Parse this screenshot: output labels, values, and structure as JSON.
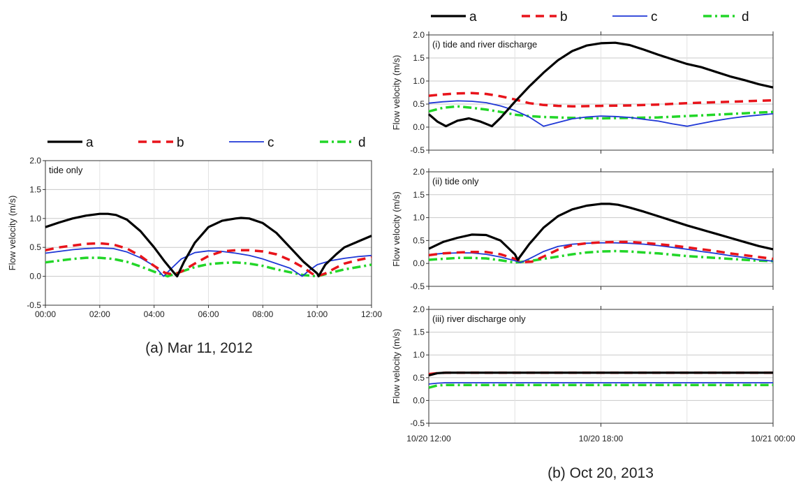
{
  "series_styles": {
    "a": {
      "color": "#000000",
      "width": 3.2,
      "dash": ""
    },
    "b": {
      "color": "#e8141b",
      "width": 3.5,
      "dash": "12 8"
    },
    "c": {
      "color": "#1f37d6",
      "width": 1.8,
      "dash": ""
    },
    "d": {
      "color": "#22d628",
      "width": 3.5,
      "dash": "12 5 3 5"
    }
  },
  "legend_left": [
    "a",
    "b",
    "c",
    "d"
  ],
  "legend_right": [
    "a",
    "b",
    "c",
    "d"
  ],
  "captions": {
    "left": "(a) Mar 11, 2012",
    "right": "(b) Oct 20, 2013"
  },
  "chart_data": [
    {
      "type": "line",
      "panel_label": "tide only",
      "ylabel": "Flow velocity (m/s)",
      "ylim": [
        -0.5,
        2.0
      ],
      "yticks": [
        "2.0",
        "1.5",
        "1.0",
        "0.5",
        "0.0",
        "-0.5"
      ],
      "xlim": [
        0,
        12
      ],
      "xticks": [
        "00:00",
        "02:00",
        "04:00",
        "06:00",
        "08:00",
        "10:00",
        "12:00"
      ],
      "grid": true,
      "legend": "top",
      "series": [
        {
          "name": "a",
          "x": [
            0,
            0.5,
            1,
            1.5,
            2,
            2.3,
            2.6,
            3,
            3.5,
            4,
            4.4,
            4.75,
            4.85,
            5.1,
            5.5,
            6,
            6.5,
            7,
            7.2,
            7.5,
            8,
            8.5,
            9,
            9.5,
            10,
            10.05,
            10.3,
            10.7,
            11,
            11.5,
            12
          ],
          "y": [
            0.85,
            0.93,
            1.0,
            1.05,
            1.08,
            1.08,
            1.06,
            0.98,
            0.78,
            0.5,
            0.25,
            0.05,
            0.0,
            0.25,
            0.58,
            0.85,
            0.96,
            1.0,
            1.01,
            1.0,
            0.92,
            0.75,
            0.5,
            0.25,
            0.05,
            0.0,
            0.2,
            0.38,
            0.5,
            0.6,
            0.7
          ]
        },
        {
          "name": "b",
          "x": [
            0,
            0.5,
            1,
            1.5,
            2,
            2.5,
            3,
            3.5,
            4,
            4.4,
            4.7,
            5,
            5.5,
            6,
            6.5,
            7,
            7.5,
            8,
            8.5,
            9,
            9.5,
            9.8,
            10,
            10.3,
            10.7,
            11,
            11.5,
            12
          ],
          "y": [
            0.45,
            0.5,
            0.53,
            0.56,
            0.57,
            0.55,
            0.48,
            0.35,
            0.18,
            0.06,
            0.03,
            0.08,
            0.22,
            0.35,
            0.43,
            0.45,
            0.45,
            0.43,
            0.38,
            0.28,
            0.15,
            0.05,
            0.0,
            0.05,
            0.15,
            0.22,
            0.28,
            0.33
          ]
        },
        {
          "name": "c",
          "x": [
            0,
            0.5,
            1,
            1.5,
            2,
            2.5,
            3,
            3.5,
            4,
            4.35,
            4.6,
            5,
            5.5,
            6,
            6.5,
            7,
            7.5,
            8,
            8.5,
            9,
            9.45,
            9.7,
            10,
            10.5,
            11,
            11.5,
            12
          ],
          "y": [
            0.4,
            0.43,
            0.46,
            0.48,
            0.49,
            0.48,
            0.42,
            0.32,
            0.18,
            0.0,
            0.12,
            0.3,
            0.41,
            0.44,
            0.43,
            0.4,
            0.36,
            0.3,
            0.22,
            0.14,
            0.0,
            0.1,
            0.2,
            0.27,
            0.31,
            0.34,
            0.36
          ]
        },
        {
          "name": "d",
          "x": [
            0,
            0.5,
            1,
            1.5,
            2,
            2.5,
            3,
            3.5,
            4,
            4.5,
            5,
            5.5,
            6,
            6.5,
            7,
            7.5,
            8,
            8.5,
            9,
            9.5,
            10,
            10.5,
            11,
            11.5,
            12
          ],
          "y": [
            0.24,
            0.27,
            0.3,
            0.32,
            0.32,
            0.3,
            0.25,
            0.17,
            0.08,
            0.0,
            0.08,
            0.16,
            0.21,
            0.23,
            0.24,
            0.22,
            0.18,
            0.12,
            0.07,
            0.02,
            0.0,
            0.06,
            0.12,
            0.16,
            0.2
          ]
        }
      ]
    },
    {
      "type": "line",
      "panel_label": "(i) tide and river discharge",
      "ylabel": "Flow velocity (m/s)",
      "ylim": [
        -0.5,
        2.0
      ],
      "yticks": [
        "2.0",
        "1.5",
        "1.0",
        "0.5",
        "0.0",
        "-0.5"
      ],
      "xlim": [
        0,
        12
      ],
      "xticks": [],
      "grid": true,
      "series": [
        {
          "name": "a",
          "x": [
            0,
            0.3,
            0.6,
            1,
            1.4,
            1.8,
            2.2,
            2.5,
            3,
            3.5,
            4,
            4.5,
            5,
            5.5,
            6,
            6.5,
            7,
            7.5,
            8,
            8.5,
            9,
            9.5,
            10,
            10.5,
            11,
            11.5,
            12
          ],
          "y": [
            0.28,
            0.12,
            0.02,
            0.14,
            0.19,
            0.12,
            0.02,
            0.2,
            0.55,
            0.88,
            1.18,
            1.45,
            1.65,
            1.77,
            1.82,
            1.83,
            1.78,
            1.68,
            1.57,
            1.47,
            1.37,
            1.3,
            1.2,
            1.1,
            1.02,
            0.93,
            0.86
          ]
        },
        {
          "name": "b",
          "x": [
            0,
            0.5,
            1,
            1.5,
            2,
            2.5,
            3,
            3.5,
            4,
            4.5,
            5,
            6,
            7,
            8,
            9,
            10,
            11,
            12
          ],
          "y": [
            0.68,
            0.71,
            0.73,
            0.74,
            0.72,
            0.67,
            0.6,
            0.52,
            0.48,
            0.46,
            0.45,
            0.46,
            0.47,
            0.49,
            0.52,
            0.54,
            0.56,
            0.58
          ]
        },
        {
          "name": "c",
          "x": [
            0,
            0.5,
            1,
            1.5,
            2,
            2.5,
            3,
            3.5,
            4,
            4.5,
            5,
            5.5,
            6,
            6.5,
            7,
            7.5,
            8,
            8.5,
            9,
            9.5,
            10,
            10.5,
            11,
            11.5,
            12
          ],
          "y": [
            0.52,
            0.55,
            0.57,
            0.56,
            0.53,
            0.46,
            0.36,
            0.22,
            0.02,
            0.1,
            0.18,
            0.22,
            0.24,
            0.23,
            0.21,
            0.17,
            0.13,
            0.07,
            0.02,
            0.08,
            0.14,
            0.19,
            0.23,
            0.26,
            0.29
          ]
        },
        {
          "name": "d",
          "x": [
            0,
            0.5,
            1,
            1.5,
            2,
            2.5,
            3,
            3.5,
            4,
            5,
            6,
            7,
            8,
            9,
            10,
            11,
            12
          ],
          "y": [
            0.34,
            0.42,
            0.45,
            0.42,
            0.38,
            0.33,
            0.27,
            0.24,
            0.22,
            0.2,
            0.19,
            0.2,
            0.21,
            0.24,
            0.27,
            0.3,
            0.33
          ]
        }
      ]
    },
    {
      "type": "line",
      "panel_label": "(ii) tide only",
      "ylabel": "Flow velocity (m/s)",
      "ylim": [
        -0.5,
        2.0
      ],
      "yticks": [
        "2.0",
        "1.5",
        "1.0",
        "0.5",
        "0.0",
        "-0.5"
      ],
      "xlim": [
        0,
        12
      ],
      "xticks": [],
      "grid": true,
      "series": [
        {
          "name": "a",
          "x": [
            0,
            0.5,
            1,
            1.5,
            2,
            2.5,
            3,
            3.1,
            3.5,
            4,
            4.5,
            5,
            5.5,
            6,
            6.3,
            6.6,
            7,
            7.5,
            8,
            8.5,
            9,
            9.5,
            10,
            10.5,
            11,
            11.5,
            12
          ],
          "y": [
            0.32,
            0.47,
            0.56,
            0.63,
            0.62,
            0.5,
            0.2,
            0.08,
            0.42,
            0.78,
            1.03,
            1.18,
            1.26,
            1.3,
            1.3,
            1.28,
            1.22,
            1.13,
            1.03,
            0.93,
            0.83,
            0.74,
            0.65,
            0.56,
            0.47,
            0.38,
            0.31
          ]
        },
        {
          "name": "b",
          "x": [
            0,
            0.5,
            1,
            1.5,
            2,
            2.5,
            3,
            3.3,
            3.6,
            4,
            4.5,
            5,
            5.5,
            6,
            6.5,
            7,
            7.5,
            8,
            8.5,
            9,
            9.5,
            10,
            10.5,
            11,
            11.5,
            12
          ],
          "y": [
            0.18,
            0.22,
            0.24,
            0.25,
            0.25,
            0.2,
            0.1,
            0.03,
            0.04,
            0.15,
            0.3,
            0.4,
            0.44,
            0.46,
            0.47,
            0.47,
            0.45,
            0.42,
            0.39,
            0.35,
            0.31,
            0.27,
            0.22,
            0.18,
            0.14,
            0.1
          ]
        },
        {
          "name": "c",
          "x": [
            0,
            0.5,
            1,
            1.5,
            2,
            2.5,
            3,
            3.2,
            3.5,
            4,
            4.5,
            5,
            5.5,
            6,
            6.5,
            7,
            7.5,
            8,
            8.5,
            9,
            9.5,
            10,
            10.5,
            11,
            11.5,
            12
          ],
          "y": [
            0.19,
            0.22,
            0.23,
            0.23,
            0.2,
            0.14,
            0.06,
            0.02,
            0.1,
            0.26,
            0.37,
            0.42,
            0.44,
            0.45,
            0.45,
            0.44,
            0.42,
            0.39,
            0.35,
            0.31,
            0.26,
            0.22,
            0.17,
            0.13,
            0.08,
            0.05
          ]
        },
        {
          "name": "d",
          "x": [
            0,
            0.5,
            1,
            1.5,
            2,
            2.5,
            3,
            3.5,
            4,
            4.5,
            5,
            5.5,
            6,
            6.5,
            7,
            7.5,
            8,
            8.5,
            9,
            9.5,
            10,
            10.5,
            11,
            11.5,
            12
          ],
          "y": [
            0.08,
            0.1,
            0.12,
            0.12,
            0.11,
            0.07,
            0.02,
            0.05,
            0.1,
            0.15,
            0.2,
            0.24,
            0.26,
            0.27,
            0.26,
            0.24,
            0.22,
            0.19,
            0.16,
            0.14,
            0.12,
            0.1,
            0.08,
            0.06,
            0.05
          ]
        }
      ]
    },
    {
      "type": "line",
      "panel_label": "(iii) river discharge only",
      "ylabel": "Flow velocity (m/s)",
      "ylim": [
        -0.5,
        2.0
      ],
      "yticks": [
        "2.0",
        "1.5",
        "1.0",
        "0.5",
        "0.0",
        "-0.5"
      ],
      "xlim": [
        0,
        12
      ],
      "xticks": [
        "10/20 12:00",
        "10/20 18:00",
        "10/21 00:00"
      ],
      "xtick_values": [
        0,
        6,
        12
      ],
      "grid": true,
      "series": [
        {
          "name": "a",
          "x": [
            0,
            0.3,
            0.6,
            12
          ],
          "y": [
            0.55,
            0.6,
            0.61,
            0.61
          ]
        },
        {
          "name": "b",
          "x": [
            0,
            0.3,
            0.6,
            12
          ],
          "y": [
            0.58,
            0.6,
            0.61,
            0.61
          ]
        },
        {
          "name": "c",
          "x": [
            0,
            0.3,
            0.6,
            12
          ],
          "y": [
            0.36,
            0.38,
            0.39,
            0.39
          ]
        },
        {
          "name": "d",
          "x": [
            0,
            0.3,
            0.6,
            12
          ],
          "y": [
            0.28,
            0.33,
            0.34,
            0.34
          ]
        }
      ]
    }
  ]
}
